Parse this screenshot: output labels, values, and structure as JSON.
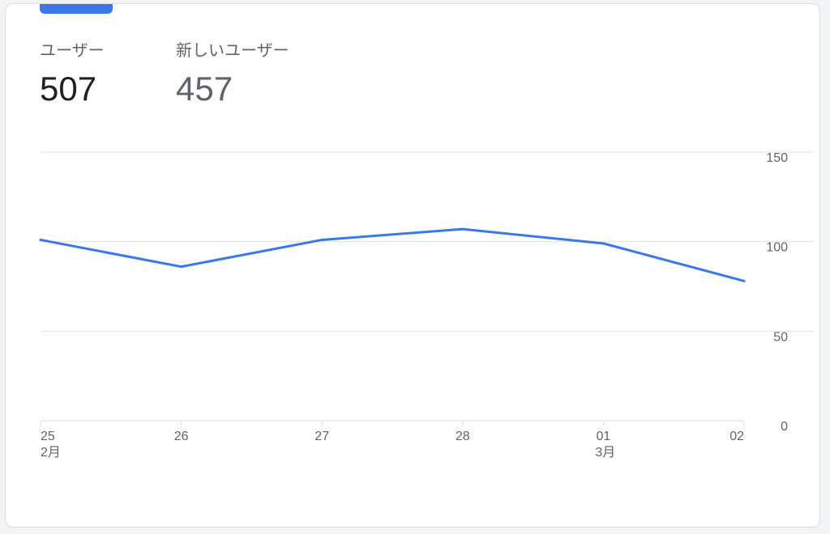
{
  "metrics": [
    {
      "label": "ユーザー",
      "value": "507"
    },
    {
      "label": "新しいユーザー",
      "value": "457"
    }
  ],
  "colors": {
    "accent": "#3b78e7",
    "grid": "#e0e0e0",
    "text_primary": "#202124",
    "text_secondary": "#5f6368"
  },
  "chart_data": {
    "type": "line",
    "categories": [
      "25",
      "26",
      "27",
      "28",
      "01",
      "02"
    ],
    "category_sublabels": [
      "2月",
      "",
      "",
      "",
      "3月",
      ""
    ],
    "series": [
      {
        "values": [
          101,
          86,
          101,
          107,
          99,
          78
        ]
      }
    ],
    "yticks": [
      0,
      50,
      100,
      150
    ],
    "ylim": [
      0,
      150
    ],
    "y_axis_side": "right",
    "grid": true,
    "title": "",
    "xlabel": "",
    "ylabel": ""
  }
}
